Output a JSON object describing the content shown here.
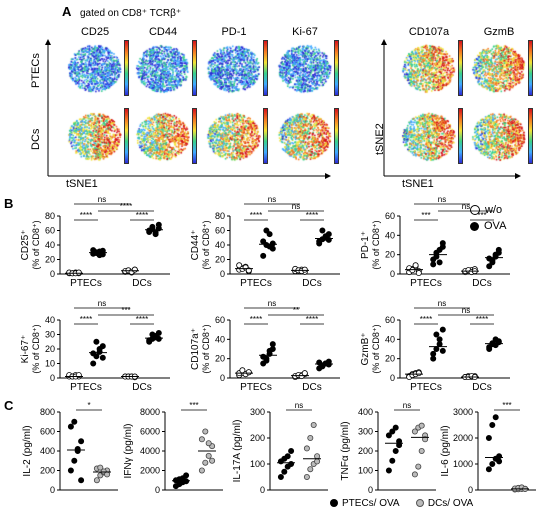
{
  "panelA": {
    "letter": "A",
    "gating": "gated on CD8⁺ TCRβ⁺",
    "markers": [
      "CD25",
      "CD44",
      "PD-1",
      "Ki-67",
      "CD107a",
      "GzmB"
    ],
    "rows": [
      "PTECs",
      "DCs"
    ],
    "x_axis": "tSNE1",
    "y_axis": "tSNE2"
  },
  "panelB": {
    "letter": "B",
    "legend": [
      {
        "label": "w/o",
        "style": "open"
      },
      {
        "label": "OVA",
        "style": "filled"
      }
    ],
    "groups": [
      "PTECs",
      "DCs"
    ],
    "plots": [
      {
        "ylabel": "CD25⁺",
        "unit": "(% of CD8⁺)",
        "ymax": 80,
        "ticks": [
          0,
          20,
          40,
          60,
          80
        ],
        "sig": {
          "left": "****",
          "right": "****",
          "top": "****",
          "mid": "ns"
        },
        "data": [
          [
            1,
            1,
            2,
            1,
            2,
            1,
            1,
            2
          ],
          [
            28,
            29,
            31,
            27,
            33,
            30,
            26,
            32
          ],
          [
            3,
            5,
            2,
            6,
            4,
            5,
            3,
            6
          ],
          [
            58,
            62,
            55,
            68,
            60,
            65,
            57,
            63
          ]
        ]
      },
      {
        "ylabel": "CD44⁺",
        "unit": "(% of CD8⁺)",
        "ymax": 80,
        "ticks": [
          0,
          20,
          40,
          60,
          80
        ],
        "sig": {
          "left": "****",
          "right": "****",
          "top": "ns",
          "mid": "ns"
        },
        "data": [
          [
            6,
            8,
            10,
            4,
            12,
            7,
            9,
            5
          ],
          [
            25,
            40,
            55,
            35,
            45,
            60,
            38,
            42
          ],
          [
            4,
            5,
            6,
            3,
            7,
            5,
            4,
            6
          ],
          [
            42,
            48,
            52,
            55,
            45,
            60,
            50,
            47
          ]
        ]
      },
      {
        "ylabel": "PD-1⁺",
        "unit": "(% of CD8⁺)",
        "ymax": 60,
        "ticks": [
          0,
          20,
          40,
          60
        ],
        "sig": {
          "left": "***",
          "right": "***",
          "top": "ns",
          "mid": "ns"
        },
        "data": [
          [
            2,
            5,
            8,
            3,
            6,
            4,
            9,
            1
          ],
          [
            10,
            18,
            25,
            32,
            15,
            22,
            12,
            28
          ],
          [
            2,
            3,
            4,
            5,
            3,
            4,
            2,
            3
          ],
          [
            8,
            14,
            20,
            25,
            16,
            12,
            18,
            22
          ]
        ]
      },
      {
        "ylabel": "Ki-67⁺",
        "unit": "(% of CD8⁺)",
        "ymax": 40,
        "ticks": [
          0,
          10,
          20,
          30,
          40
        ],
        "sig": {
          "left": "****",
          "right": "****",
          "top": "***",
          "mid": "ns"
        },
        "data": [
          [
            1,
            1,
            2,
            1,
            2,
            1,
            1,
            2
          ],
          [
            10,
            15,
            20,
            22,
            17,
            25,
            18,
            14
          ],
          [
            1,
            1,
            1,
            0.5,
            1,
            1,
            1,
            1
          ],
          [
            25,
            27,
            29,
            31,
            26,
            30,
            28,
            27
          ]
        ]
      },
      {
        "ylabel": "CD107a⁺",
        "unit": "(% of CD8⁺)",
        "ymax": 60,
        "ticks": [
          0,
          20,
          40,
          60
        ],
        "sig": {
          "left": "****",
          "right": "****",
          "top": "**",
          "mid": "ns"
        },
        "data": [
          [
            3,
            5,
            4,
            6,
            5,
            8,
            4,
            6
          ],
          [
            15,
            20,
            28,
            35,
            22,
            18,
            25,
            30
          ],
          [
            1,
            2,
            3,
            4,
            2,
            3,
            2,
            5
          ],
          [
            10,
            12,
            15,
            14,
            16,
            13,
            15,
            17
          ]
        ]
      },
      {
        "ylabel": "GzmB⁺",
        "unit": "(% of CD8⁺)",
        "ymax": 60,
        "ticks": [
          0,
          20,
          40,
          60
        ],
        "sig": {
          "left": "****",
          "right": "****",
          "top": "ns",
          "mid": "ns"
        },
        "data": [
          [
            2,
            4,
            5,
            6,
            1,
            3,
            4,
            5
          ],
          [
            20,
            30,
            40,
            50,
            25,
            45,
            35,
            28
          ],
          [
            1,
            2,
            1,
            2,
            1,
            1,
            2,
            1
          ],
          [
            30,
            35,
            40,
            38,
            32,
            36,
            34,
            37
          ]
        ]
      }
    ]
  },
  "panelC": {
    "letter": "C",
    "legend": [
      {
        "label": "PTECs/ OVA",
        "style": "filled"
      },
      {
        "label": "DCs/ OVA",
        "style": "grey"
      }
    ],
    "plots": [
      {
        "ylabel": "IL-2 (pg/ml)",
        "ymax": 800,
        "ticks": [
          0,
          200,
          400,
          600,
          800
        ],
        "sig": "*",
        "data": [
          [
            200,
            300,
            420,
            500,
            650,
            700,
            400,
            100
          ],
          [
            100,
            150,
            180,
            200,
            220,
            230,
            190,
            160
          ]
        ]
      },
      {
        "ylabel": "IFNγ (pg/ml)",
        "ymax": 8000,
        "ticks": [
          0,
          2000,
          4000,
          6000,
          8000
        ],
        "sig": "***",
        "data": [
          [
            400,
            600,
            800,
            900,
            1000,
            1100,
            1200,
            1500
          ],
          [
            2000,
            2800,
            3500,
            4500,
            5200,
            6000,
            4800,
            3000
          ]
        ]
      },
      {
        "ylabel": "IL-17A (pg/ml)",
        "ymax": 300,
        "ticks": [
          0,
          100,
          200,
          300
        ],
        "sig": "ns",
        "data": [
          [
            50,
            70,
            90,
            100,
            110,
            120,
            130,
            150
          ],
          [
            50,
            80,
            100,
            130,
            160,
            200,
            250,
            110
          ]
        ]
      },
      {
        "ylabel": "TNFα (pg/ml)",
        "ymax": 400,
        "ticks": [
          0,
          100,
          200,
          300,
          400
        ],
        "sig": "ns",
        "data": [
          [
            100,
            150,
            200,
            250,
            280,
            300,
            320,
            230
          ],
          [
            80,
            120,
            200,
            280,
            300,
            320,
            330,
            260
          ]
        ]
      },
      {
        "ylabel": "IL-6 (pg/ml)",
        "ymax": 3000,
        "ticks": [
          0,
          1000,
          2000,
          3000
        ],
        "sig": "***",
        "data": [
          [
            800,
            1000,
            1200,
            1300,
            2000,
            2500,
            2800,
            1100
          ],
          [
            20,
            30,
            40,
            50,
            60,
            80,
            100,
            40
          ]
        ]
      }
    ]
  }
}
